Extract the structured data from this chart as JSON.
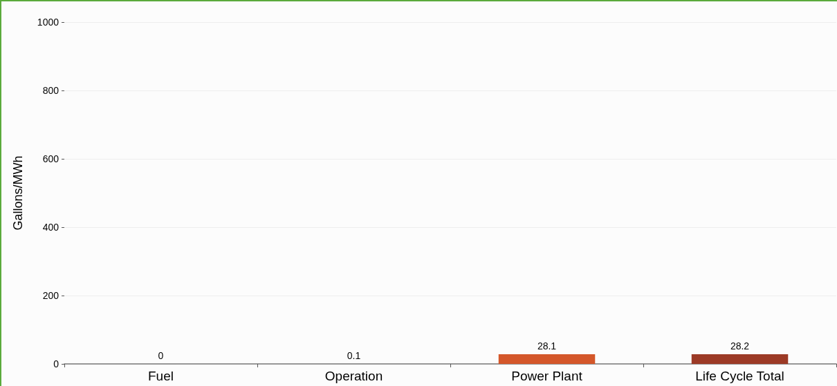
{
  "chart_data": {
    "type": "bar",
    "ylabel": "Gallons/MWh",
    "categories": [
      "Fuel",
      "Operation",
      "Power Plant",
      "Life Cycle Total"
    ],
    "values": [
      0,
      0.1,
      28.1,
      28.2
    ],
    "colors": [
      "#e0703a",
      "#e0703a",
      "#d4572a",
      "#9c3a26"
    ],
    "ylim": [
      0,
      1000
    ],
    "yticks": [
      0,
      200,
      400,
      600,
      800,
      1000
    ],
    "grid": "y",
    "data_labels": true
  }
}
